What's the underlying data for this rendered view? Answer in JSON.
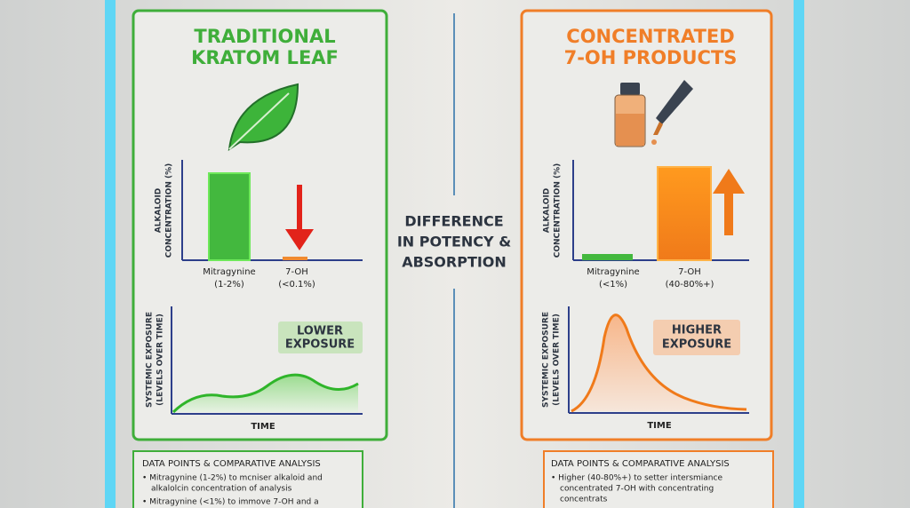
{
  "center": {
    "lines": [
      "DIFFERENCE",
      "IN POTENCY &",
      "ABSORPTION"
    ]
  },
  "left": {
    "title": [
      "TRADITIONAL",
      "KRATOM LEAF"
    ],
    "bar_chart": {
      "y_label": [
        "ALKALOID",
        "CONCENTRATION (%)"
      ],
      "categories": [
        [
          "Mitragynine",
          "(1-2%)"
        ],
        [
          "7-OH",
          "(<0.1%)"
        ]
      ]
    },
    "curve_chart": {
      "y_label": [
        "SYSTEMIC EXPOSURE",
        "(LEVELS OVER TIME)"
      ],
      "x_label": "TIME",
      "callout": [
        "LOWER",
        "EXPOSURE"
      ]
    },
    "notes": {
      "heading": "DATA POINTS & COMPARATIVE ANALYSIS",
      "bullets": [
        [
          "• Mitragynine (1-2%) to mcniser alkaloid and",
          "alkalolcin concentration of analysis"
        ],
        [
          "• Mitragynine (<1%) to immove 7-OH and a"
        ]
      ]
    }
  },
  "right": {
    "title": [
      "CONCENTRATED",
      "7-OH PRODUCTS"
    ],
    "bar_chart": {
      "y_label": [
        "ALKALOID",
        "CONCENTRATION (%)"
      ],
      "categories": [
        [
          "Mitragynine",
          "(<1%)"
        ],
        [
          "7-OH",
          "(40-80%+)"
        ]
      ]
    },
    "curve_chart": {
      "y_label": [
        "SYSTEMIC EXPOSURE",
        "(LEVELS OVER TIME)"
      ],
      "x_label": "TIME",
      "callout": [
        "HIGHER",
        "EXPOSURE"
      ]
    },
    "notes": {
      "heading": "DATA POINTS & COMPARATIVE ANALYSIS",
      "bullets": [
        [
          "• Higher (40-80%+) to setter intersmiance",
          "concentrated 7-OH with concentrating",
          "concentrats"
        ]
      ]
    }
  }
}
